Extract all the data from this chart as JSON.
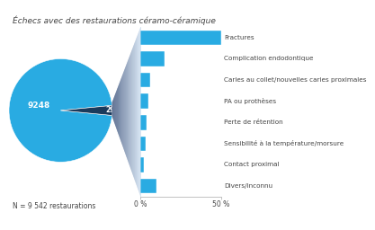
{
  "title": "Échecs avec des restaurations céramo-céramique",
  "subtitle": "N = 9 542 restaurations",
  "pie_success": 9248,
  "pie_failure": 294,
  "pie_color_success": "#29abe2",
  "pie_color_failure": "#1a3a5c",
  "categories": [
    "Fractures",
    "Complication endodontique",
    "Caries au collet/nouvelles caries proximales",
    "PA ou prothèses",
    "Perte de rétention",
    "Sensibilité à la température/morsure",
    "Contact proximal",
    "Divers/inconnu"
  ],
  "values": [
    50,
    15,
    6,
    5,
    4,
    3,
    2,
    10
  ],
  "bar_color": "#29abe2",
  "axis_max": 50,
  "x_ticks": [
    0,
    50
  ],
  "x_tick_labels": [
    "0 %",
    "50 %"
  ],
  "background_color": "#ffffff",
  "text_color": "#444444",
  "title_fontsize": 6.5,
  "label_fontsize": 5.5,
  "tick_fontsize": 5.5,
  "cat_fontsize": 5.2,
  "pie_label_fontsize": 6.5,
  "funnel_color": "#1a3464",
  "funnel_color2": "#c8dff0"
}
